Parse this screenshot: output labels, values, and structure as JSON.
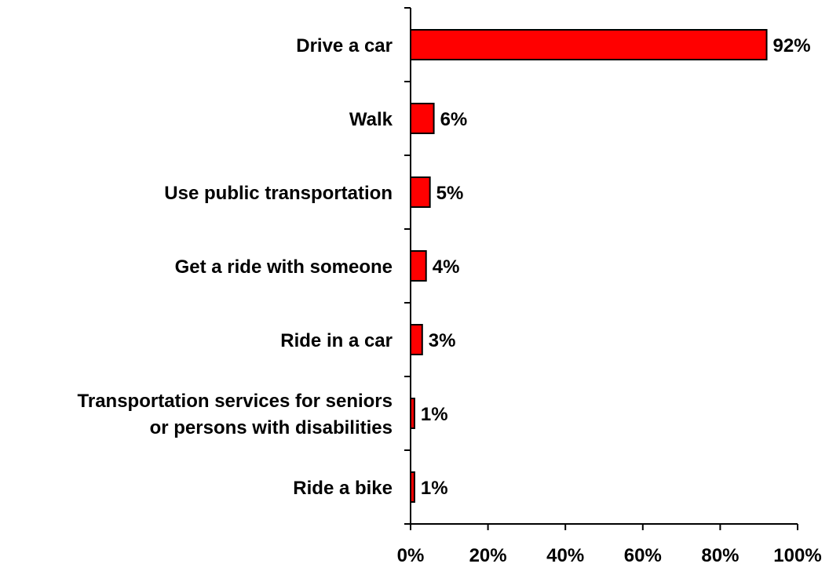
{
  "chart_data": {
    "type": "bar",
    "orientation": "horizontal",
    "categories": [
      [
        "Drive a car"
      ],
      [
        "Walk"
      ],
      [
        "Use public transportation"
      ],
      [
        "Get a ride with someone"
      ],
      [
        "Ride in a car"
      ],
      [
        "Transportation services for seniors",
        "or persons with disabilities"
      ],
      [
        "Ride a bike"
      ]
    ],
    "values": [
      92,
      6,
      5,
      4,
      3,
      1,
      1
    ],
    "value_labels": [
      "92%",
      "6%",
      "5%",
      "4%",
      "3%",
      "1%",
      "1%"
    ],
    "xlim": [
      0,
      100
    ],
    "xticks": [
      0,
      20,
      40,
      60,
      80,
      100
    ],
    "xtick_labels": [
      "0%",
      "20%",
      "40%",
      "60%",
      "80%",
      "100%"
    ],
    "title": "",
    "xlabel": "",
    "ylabel": "",
    "grid": false,
    "legend": "none",
    "bar_color": "#ff0000",
    "bar_edge_color": "#000000"
  }
}
